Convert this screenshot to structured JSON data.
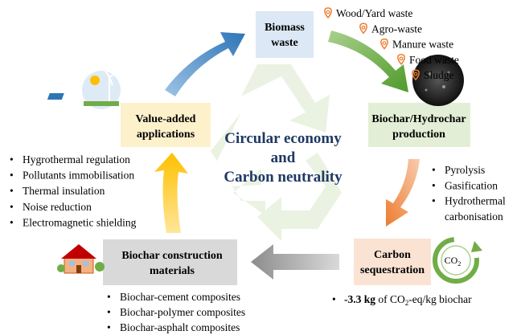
{
  "center": {
    "lines": [
      "Circular economy",
      "and",
      "Carbon neutrality"
    ]
  },
  "nodes": [
    {
      "lines": [
        "Biomass",
        "waste"
      ]
    },
    {
      "lines": [
        "Biochar/Hydrochar",
        "production"
      ]
    },
    {
      "lines": [
        "Carbon",
        "sequestration"
      ]
    },
    {
      "lines": [
        "Biochar construction",
        "materials"
      ]
    },
    {
      "lines": [
        "Value-added",
        "applications"
      ]
    }
  ],
  "biomass_sources": [
    "Wood/Yard waste",
    "Agro-waste",
    "Manure waste",
    "Food waste",
    "Sludge"
  ],
  "processes": [
    "Pyrolysis",
    "Gasification",
    "Hydrothermal",
    "carbonisation"
  ],
  "sequestration_note": {
    "amount": "-3.3 kg",
    "text_a": " of CO",
    "subscript": "2",
    "text_b": "-eq/kg biochar"
  },
  "co2_icon": {
    "text": "CO",
    "subscript": "2"
  },
  "composites": [
    "Biochar-cement composites",
    "Biochar-polymer composites",
    "Biochar-asphalt composites"
  ],
  "applications": [
    "Hygrothermal regulation",
    "Pollutants immobilisation",
    "Thermal insulation",
    "Noise reduction",
    "Electromagnetic shielding"
  ]
}
